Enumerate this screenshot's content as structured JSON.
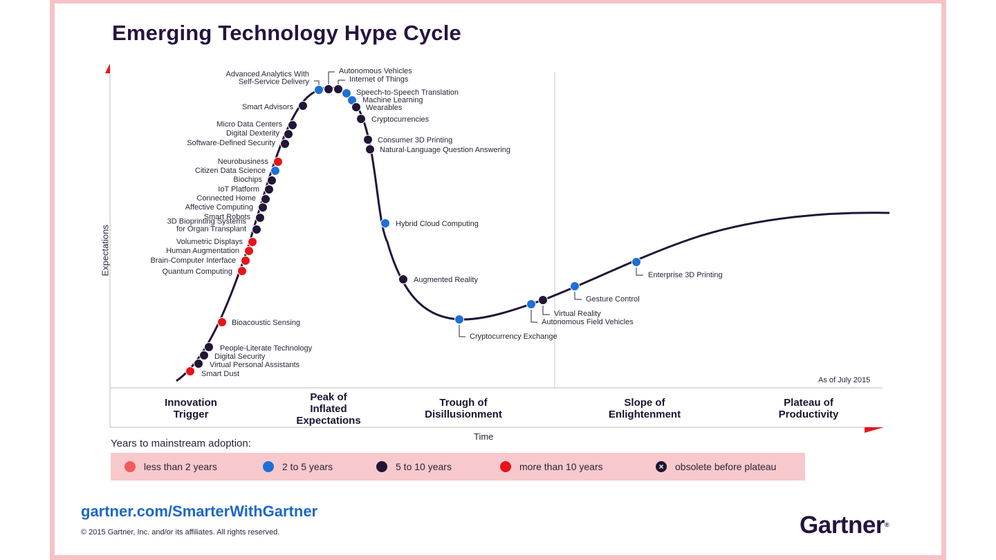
{
  "title": "Emerging Technology Hype Cycle",
  "as_of": "As of July 2015",
  "colors": {
    "less_than_2": "#f25b5b",
    "two_to_five": "#1f6fd6",
    "five_to_ten": "#221536",
    "more_than_10": "#e8141c",
    "obsolete": "#221536",
    "accent_pink": "#f8c9cc",
    "axis_red": "#e8141c"
  },
  "chart_data": {
    "type": "scatter",
    "xlabel": "Time",
    "ylabel": "Expectations",
    "phases": [
      "Innovation\nTrigger",
      "Peak of\nInflated\nExpectations",
      "Trough of\nDisillusionment",
      "Slope of\nEnlightenment",
      "Plateau of\nProductivity"
    ],
    "legend_title": "Years to mainstream adoption:",
    "legend": [
      {
        "key": "less_than_2",
        "label": "less than 2 years"
      },
      {
        "key": "two_to_five",
        "label": "2 to 5 years"
      },
      {
        "key": "five_to_ten",
        "label": "5 to 10 years"
      },
      {
        "key": "more_than_10",
        "label": "more than 10 years"
      },
      {
        "key": "obsolete",
        "label": "obsolete before plateau"
      }
    ],
    "technologies": [
      {
        "name": "Smart Dust",
        "cat": "more_than_10"
      },
      {
        "name": "Virtual Personal Assistants",
        "cat": "five_to_ten"
      },
      {
        "name": "Digital Security",
        "cat": "five_to_ten"
      },
      {
        "name": "People-Literate Technology",
        "cat": "five_to_ten"
      },
      {
        "name": "Bioacoustic Sensing",
        "cat": "more_than_10"
      },
      {
        "name": "Quantum Computing",
        "cat": "more_than_10"
      },
      {
        "name": "Brain-Computer Interface",
        "cat": "more_than_10"
      },
      {
        "name": "Human Augmentation",
        "cat": "more_than_10"
      },
      {
        "name": "Volumetric Displays",
        "cat": "more_than_10"
      },
      {
        "name": "3D Bioprinting Systems\nfor Organ Transplant",
        "cat": "five_to_ten"
      },
      {
        "name": "Smart Robots",
        "cat": "five_to_ten"
      },
      {
        "name": "Affective Computing",
        "cat": "five_to_ten"
      },
      {
        "name": "Connected Home",
        "cat": "five_to_ten"
      },
      {
        "name": "IoT Platform",
        "cat": "five_to_ten"
      },
      {
        "name": "Biochips",
        "cat": "five_to_ten"
      },
      {
        "name": "Citizen Data Science",
        "cat": "two_to_five"
      },
      {
        "name": "Neurobusiness",
        "cat": "more_than_10"
      },
      {
        "name": "Software-Defined Security",
        "cat": "five_to_ten"
      },
      {
        "name": "Digital Dexterity",
        "cat": "five_to_ten"
      },
      {
        "name": "Micro Data Centers",
        "cat": "five_to_ten"
      },
      {
        "name": "Smart Advisors",
        "cat": "five_to_ten"
      },
      {
        "name": "Advanced Analytics With\nSelf-Service Delivery",
        "cat": "two_to_five"
      },
      {
        "name": "Autonomous Vehicles",
        "cat": "five_to_ten"
      },
      {
        "name": "Internet of Things",
        "cat": "five_to_ten"
      },
      {
        "name": "Speech-to-Speech Translation",
        "cat": "two_to_five"
      },
      {
        "name": "Machine Learning",
        "cat": "two_to_five"
      },
      {
        "name": "Wearables",
        "cat": "five_to_ten"
      },
      {
        "name": "Cryptocurrencies",
        "cat": "five_to_ten"
      },
      {
        "name": "Consumer 3D Printing",
        "cat": "five_to_ten"
      },
      {
        "name": "Natural-Language Question Answering",
        "cat": "five_to_ten"
      },
      {
        "name": "Hybrid Cloud Computing",
        "cat": "two_to_five"
      },
      {
        "name": "Augmented Reality",
        "cat": "five_to_ten"
      },
      {
        "name": "Cryptocurrency Exchange",
        "cat": "two_to_five"
      },
      {
        "name": "Autonomous Field Vehicles",
        "cat": "two_to_five"
      },
      {
        "name": "Virtual Reality",
        "cat": "five_to_ten"
      },
      {
        "name": "Gesture Control",
        "cat": "two_to_five"
      },
      {
        "name": "Enterprise 3D Printing",
        "cat": "two_to_five"
      }
    ]
  },
  "footer": {
    "site": "gartner.com/SmarterWithGartner",
    "copyright": "© 2015 Gartner, Inc. and/or its affiliates. All rights reserved.",
    "logo": "Gartner",
    "logo_mark": "®"
  }
}
